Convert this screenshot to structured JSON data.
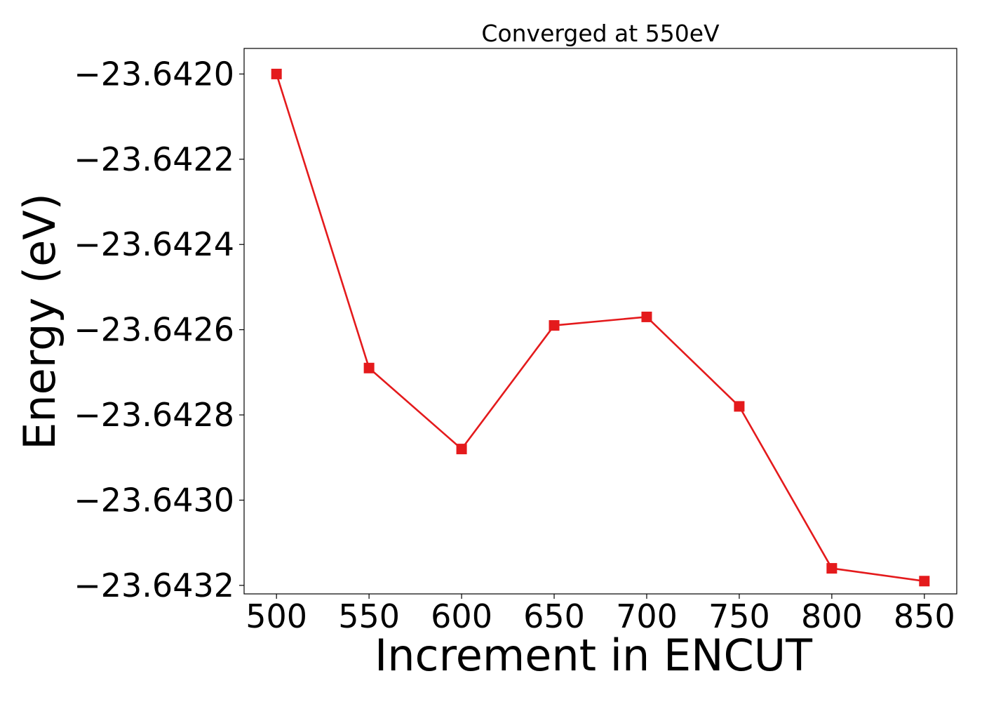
{
  "chart_data": {
    "type": "line",
    "title": "Converged at 550eV",
    "xlabel": "Increment in ENCUT",
    "ylabel": "Energy (eV)",
    "x": [
      500,
      550,
      600,
      650,
      700,
      750,
      800,
      850
    ],
    "series": [
      {
        "values": [
          -23.642,
          -23.64269,
          -23.64288,
          -23.64259,
          -23.64257,
          -23.64278,
          -23.64316,
          -23.64319
        ],
        "color": "#e41a1c",
        "marker": "square"
      }
    ],
    "xticks": [
      500,
      550,
      600,
      650,
      700,
      750,
      800,
      850
    ],
    "xtick_labels": [
      "500",
      "550",
      "600",
      "650",
      "700",
      "750",
      "800",
      "850"
    ],
    "yticks": [
      -23.642,
      -23.6422,
      -23.6424,
      -23.6426,
      -23.6428,
      -23.643,
      -23.6432
    ],
    "ytick_labels": [
      "−23.6420",
      "−23.6422",
      "−23.6424",
      "−23.6426",
      "−23.6428",
      "−23.6430",
      "−23.6432"
    ],
    "xlim": [
      482.5,
      867.5
    ],
    "ylim": [
      -23.64322,
      -23.64194
    ],
    "grid": false,
    "legend": false
  }
}
